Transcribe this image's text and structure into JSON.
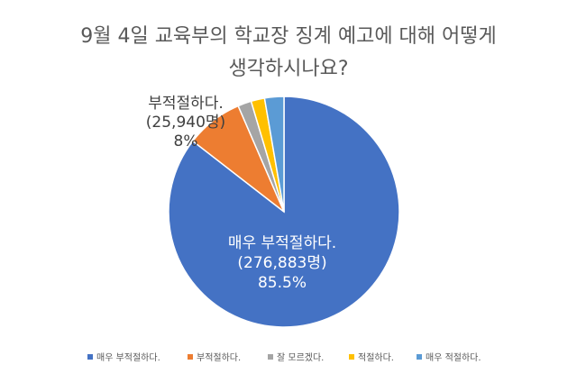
{
  "chart_data": {
    "type": "pie",
    "title": [
      "9월 4일 교육부의 학교장 징계 예고에 대해 어떻게",
      "생각하시나요?"
    ],
    "categories": [
      "매우 부적절하다.",
      "부적절하다.",
      "잘 모르겠다.",
      "적절하다.",
      "매우 적절하다."
    ],
    "values": [
      85.5,
      8.0,
      1.9,
      1.9,
      2.7
    ],
    "colors": [
      "#4472C4",
      "#ED7D31",
      "#A5A5A5",
      "#FFC000",
      "#5B9BD5"
    ],
    "data_labels": [
      {
        "lines": [
          "매우 부적절하다.",
          "(276,883명)",
          "85.5%"
        ],
        "color": "#ffffff"
      },
      {
        "lines": [
          "부적절하다.",
          "(25,940명)",
          "8%"
        ],
        "color": "#404040"
      }
    ],
    "legend_position": "bottom",
    "grid": false
  }
}
